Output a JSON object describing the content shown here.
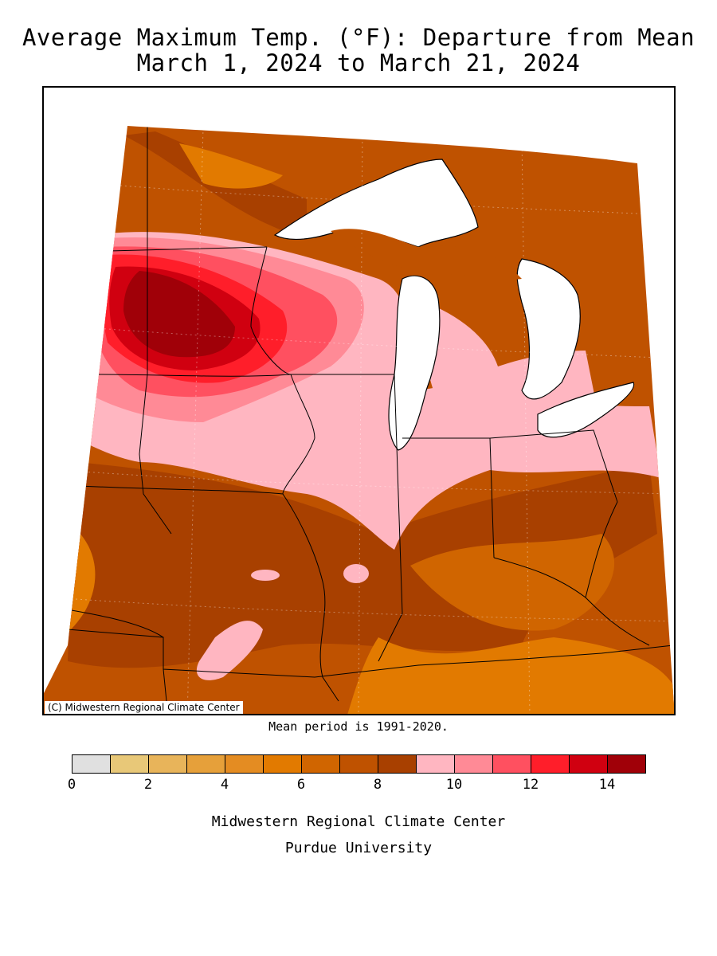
{
  "header": {
    "title_line1": "Average Maximum Temp. (°F): Departure from Mean",
    "title_line2": "March 1, 2024 to March 21, 2024"
  },
  "map": {
    "copyright": "(C) Midwestern Regional Climate Center",
    "mean_note": "Mean period is 1991-2020.",
    "lake_color": "#ffffff",
    "boundary_color": "#000000"
  },
  "legend": {
    "unit": "°F",
    "bins": [
      {
        "from": 0,
        "to": 1,
        "color": "#e0e0e0"
      },
      {
        "from": 1,
        "to": 2,
        "color": "#e8c878"
      },
      {
        "from": 2,
        "to": 3,
        "color": "#e8b45a"
      },
      {
        "from": 3,
        "to": 4,
        "color": "#e6a03a"
      },
      {
        "from": 4,
        "to": 5,
        "color": "#e48c22"
      },
      {
        "from": 5,
        "to": 6,
        "color": "#e27a00"
      },
      {
        "from": 6,
        "to": 7,
        "color": "#d06500"
      },
      {
        "from": 7,
        "to": 8,
        "color": "#bf5200"
      },
      {
        "from": 8,
        "to": 9,
        "color": "#a84000"
      },
      {
        "from": 9,
        "to": 10,
        "color": "#ffb6c1"
      },
      {
        "from": 10,
        "to": 11,
        "color": "#ff8a96"
      },
      {
        "from": 11,
        "to": 12,
        "color": "#ff5060"
      },
      {
        "from": 12,
        "to": 13,
        "color": "#ff1e2a"
      },
      {
        "from": 13,
        "to": 14,
        "color": "#d00010"
      },
      {
        "from": 14,
        "to": 15,
        "color": "#a00008"
      }
    ],
    "tick_labels": [
      "0",
      "2",
      "4",
      "6",
      "8",
      "10",
      "12",
      "14"
    ]
  },
  "footer": {
    "credit_line1": "Midwestern Regional Climate Center",
    "credit_line2": "Purdue University"
  }
}
